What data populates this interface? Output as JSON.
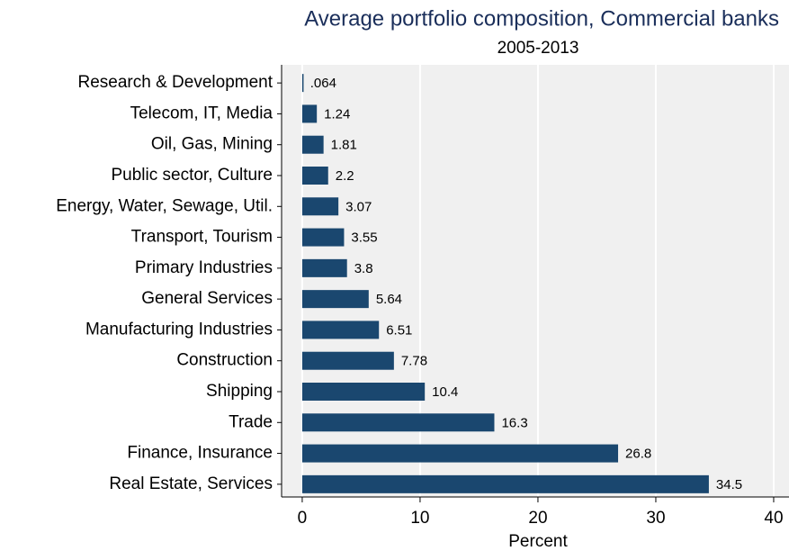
{
  "chart_data": {
    "type": "barh",
    "title": "Average portfolio composition, Commercial banks",
    "subtitle": "2005-2013",
    "x_label": "Percent",
    "categories": [
      "Research & Development",
      "Telecom, IT, Media",
      "Oil, Gas, Mining",
      "Public sector, Culture",
      "Energy, Water, Sewage, Util.",
      "Transport, Tourism",
      "Primary Industries",
      "General Services",
      "Manufacturing Industries",
      "Construction",
      "Shipping",
      "Trade",
      "Finance, Insurance",
      "Real Estate, Services"
    ],
    "values": [
      0.064,
      1.24,
      1.81,
      2.2,
      3.07,
      3.55,
      3.8,
      5.64,
      6.51,
      7.78,
      10.4,
      16.3,
      26.8,
      34.5
    ],
    "value_labels": [
      ".064",
      "1.24",
      "1.81",
      "2.2",
      "3.07",
      "3.55",
      "3.8",
      "5.64",
      "6.51",
      "7.78",
      "10.4",
      "16.3",
      "26.8",
      "34.5"
    ],
    "color": "#1a476f",
    "xlim": [
      -1.75,
      41.3
    ],
    "xticks": [
      0,
      10,
      20,
      30,
      40
    ],
    "grid": true
  }
}
